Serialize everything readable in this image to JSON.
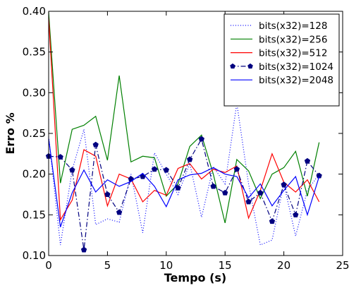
{
  "chart_data": {
    "type": "line",
    "title": "",
    "xlabel": "Tempo (s)",
    "ylabel": "Erro %",
    "xlim": [
      0,
      25
    ],
    "ylim": [
      0.1,
      0.4
    ],
    "x_ticks": [
      0,
      5,
      10,
      15,
      20,
      25
    ],
    "y_ticks": [
      0.1,
      0.15,
      0.2,
      0.25,
      0.3,
      0.35,
      0.4
    ],
    "x_tick_labels": [
      "0",
      "5",
      "10",
      "15",
      "20",
      "25"
    ],
    "y_tick_labels": [
      "0.10",
      "0.15",
      "0.20",
      "0.25",
      "0.30",
      "0.35",
      "0.40"
    ],
    "grid": false,
    "legend_position": "top-right",
    "x": [
      0,
      1,
      2,
      3,
      4,
      5,
      6,
      7,
      8,
      9,
      10,
      11,
      12,
      13,
      14,
      15,
      16,
      17,
      18,
      19,
      20,
      21,
      22,
      23
    ],
    "series": [
      {
        "name": "bits(x32)=128",
        "color": "#0000ff",
        "line_style": "dotted",
        "marker": "none",
        "values": [
          0.246,
          0.113,
          0.205,
          0.255,
          0.138,
          0.145,
          0.141,
          0.2,
          0.128,
          0.226,
          0.2,
          0.175,
          0.213,
          0.147,
          0.209,
          0.188,
          0.287,
          0.188,
          0.113,
          0.119,
          0.188,
          0.124,
          0.18,
          0.2
        ]
      },
      {
        "name": "bits(x32)=256",
        "color": "#008000",
        "line_style": "solid",
        "marker": "none",
        "values": [
          0.399,
          0.189,
          0.255,
          0.26,
          0.271,
          0.217,
          0.321,
          0.215,
          0.222,
          0.22,
          0.173,
          0.188,
          0.234,
          0.248,
          0.2,
          0.14,
          0.218,
          0.204,
          0.17,
          0.2,
          0.208,
          0.228,
          0.173,
          0.239
        ]
      },
      {
        "name": "bits(x32)=512",
        "color": "#ff0000",
        "line_style": "solid",
        "marker": "none",
        "values": [
          0.392,
          0.144,
          0.168,
          0.23,
          0.222,
          0.161,
          0.2,
          0.194,
          0.166,
          0.18,
          0.174,
          0.207,
          0.213,
          0.194,
          0.206,
          0.202,
          0.21,
          0.146,
          0.18,
          0.225,
          0.19,
          0.178,
          0.193,
          0.166
        ]
      },
      {
        "name": "bits(x32)=1024",
        "color": "#000080",
        "line_style": "dashdot",
        "marker": "pentagon",
        "values": [
          0.222,
          0.221,
          0.205,
          0.107,
          0.236,
          0.175,
          0.153,
          0.194,
          0.197,
          0.206,
          0.205,
          0.183,
          0.218,
          0.243,
          0.185,
          0.177,
          0.206,
          0.166,
          0.177,
          0.142,
          0.187,
          0.15,
          0.216,
          0.198
        ]
      },
      {
        "name": "bits(x32)=2048",
        "color": "#0000ff",
        "line_style": "solid",
        "marker": "none",
        "values": [
          0.244,
          0.135,
          0.177,
          0.205,
          0.178,
          0.193,
          0.185,
          0.191,
          0.201,
          0.185,
          0.16,
          0.193,
          0.199,
          0.201,
          0.208,
          0.2,
          0.197,
          0.171,
          0.188,
          0.161,
          0.18,
          0.197,
          0.15,
          0.197
        ]
      }
    ]
  }
}
